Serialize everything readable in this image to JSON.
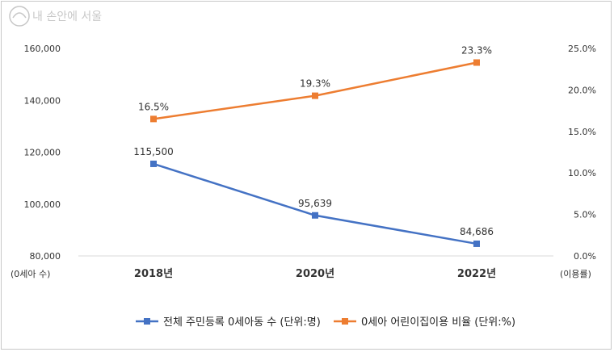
{
  "logo": {
    "text": "내 손안에 서울"
  },
  "chart_data": {
    "type": "line",
    "categories": [
      "2018년",
      "2020년",
      "2022년"
    ],
    "series": [
      {
        "name": "전체 주민등록 0세아동 수 (단위:명)",
        "axis": "left",
        "color": "#4472c4",
        "values": [
          115500,
          95639,
          84686
        ],
        "labels": [
          "115,500",
          "95,639",
          "84,686"
        ]
      },
      {
        "name": "0세아 어린이집이용 비율 (단위:%)",
        "axis": "right",
        "color": "#ed7d31",
        "values": [
          16.5,
          19.3,
          23.3
        ],
        "labels": [
          "16.5%",
          "19.3%",
          "23.3%"
        ]
      }
    ],
    "left_axis": {
      "range": [
        80000,
        160000
      ],
      "ticks": [
        80000,
        100000,
        120000,
        140000,
        160000
      ],
      "tick_labels": [
        "80,000",
        "100,000",
        "120,000",
        "140,000",
        "160,000"
      ],
      "unit_label": "(0세아 수)"
    },
    "right_axis": {
      "range": [
        0,
        25
      ],
      "ticks": [
        0,
        5,
        10,
        15,
        20,
        25
      ],
      "tick_labels": [
        "0.0%",
        "5.0%",
        "10.0%",
        "15.0%",
        "20.0%",
        "25.0%"
      ],
      "unit_label": "(이용률)"
    },
    "grid": false,
    "legend_position": "bottom"
  }
}
